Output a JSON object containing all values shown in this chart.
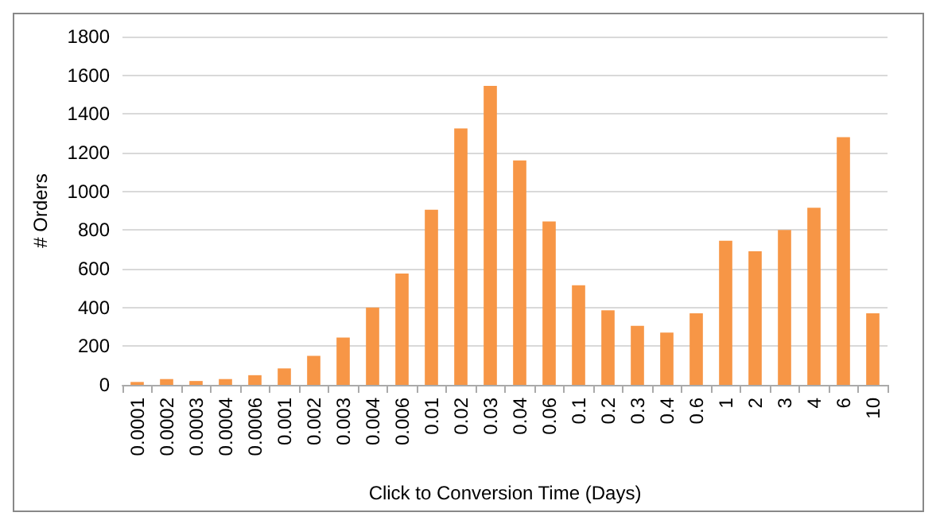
{
  "chart_data": {
    "type": "bar",
    "xlabel": "Click to Conversion Time (Days)",
    "ylabel": "# Orders",
    "categories": [
      "0.0001",
      "0.0002",
      "0.0003",
      "0.0004",
      "0.0006",
      "0.001",
      "0.002",
      "0.003",
      "0.004",
      "0.006",
      "0.01",
      "0.02",
      "0.03",
      "0.04",
      "0.06",
      "0.1",
      "0.2",
      "0.3",
      "0.4",
      "0.6",
      "1",
      "2",
      "3",
      "4",
      "6",
      "10"
    ],
    "values": [
      15,
      30,
      20,
      30,
      50,
      85,
      150,
      245,
      400,
      575,
      905,
      1325,
      1545,
      1160,
      845,
      515,
      385,
      305,
      270,
      370,
      745,
      690,
      800,
      915,
      1280,
      370
    ],
    "color": "#f79646",
    "ylim": [
      0,
      1800
    ],
    "yticks": [
      0,
      200,
      400,
      600,
      800,
      1000,
      1200,
      1400,
      1600,
      1800
    ],
    "grid": "y"
  }
}
